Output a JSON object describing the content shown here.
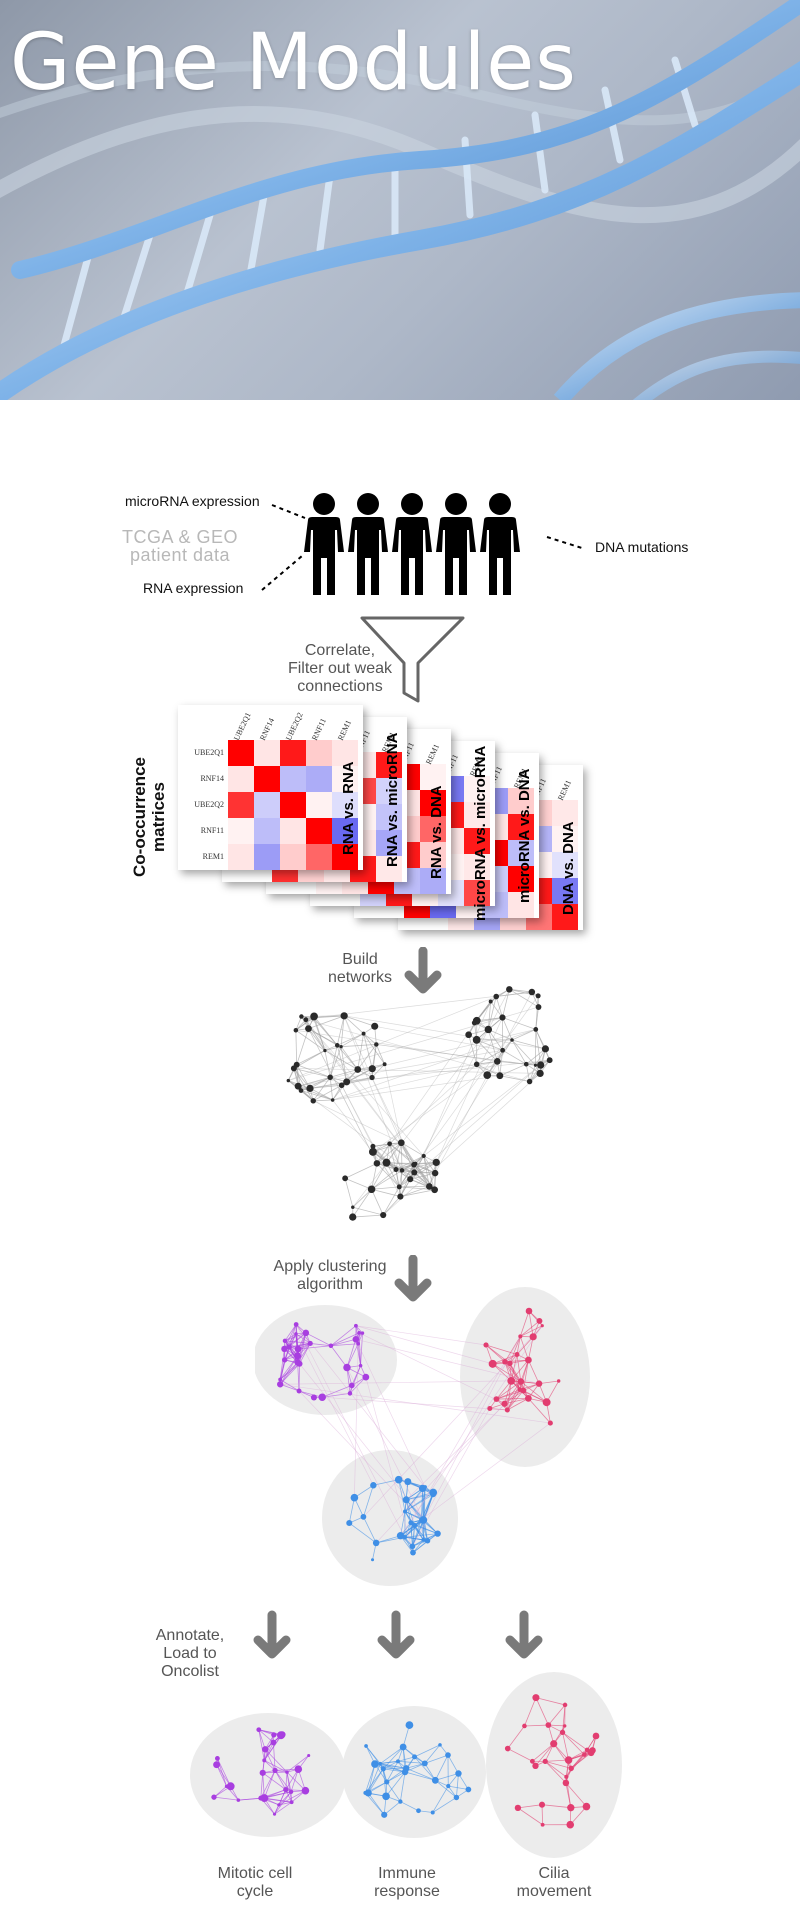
{
  "hero": {
    "title": "Gene Modules"
  },
  "inputs": {
    "microrna": "microRNA expression",
    "rna": "RNA expression",
    "dna": "DNA mutations",
    "source_line1": "TCGA & GEO",
    "source_line2": "patient data"
  },
  "steps": {
    "correlate": [
      "Correlate,",
      "Filter out weak",
      "connections"
    ],
    "build": [
      "Build",
      "networks"
    ],
    "cluster": [
      "Apply clustering",
      "algorithm"
    ],
    "annotate": [
      "Annotate,",
      "Load to",
      "Oncolist"
    ]
  },
  "matrices": {
    "axis_title": [
      "Co-occurrence",
      "matrices"
    ],
    "genes": [
      "UBE2Q1",
      "RNF14",
      "UBE2Q2",
      "RNF11",
      "REM1"
    ],
    "labels": [
      "RNA vs. RNA",
      "RNA vs. microRNA",
      "RNA vs. DNA",
      "microRNA vs. microRNA",
      "microRNA vs. DNA",
      "DNA vs. DNA"
    ]
  },
  "modules": [
    {
      "name": [
        "Mitotic cell",
        "cycle"
      ],
      "color": "#a83ee0"
    },
    {
      "name": [
        "Immune",
        "response"
      ],
      "color": "#3f8fe6"
    },
    {
      "name": [
        "Cilia",
        "movement"
      ],
      "color": "#e23d70"
    }
  ],
  "colors": {
    "arrow": "#7a7a7a",
    "heat_red": "#ff0000",
    "heat_blue": "#6a6af0",
    "network": "#2a2a2a"
  }
}
